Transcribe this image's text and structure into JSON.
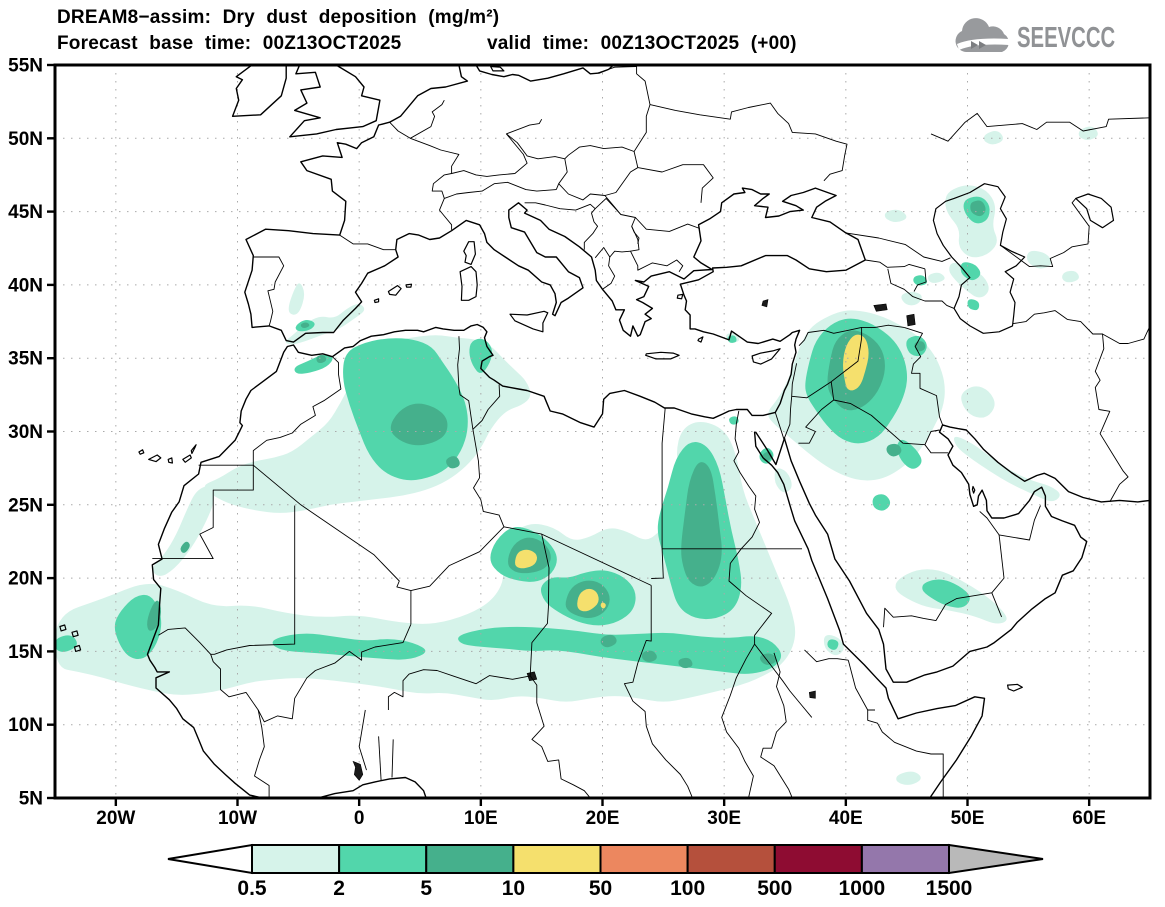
{
  "header": {
    "title": "DREAM8−assim: Dry dust deposition (mg/m²)",
    "forecast_base": "Forecast base time: 00Z13OCT2025",
    "valid_time": "valid time: 00Z13OCT2025 (+00)"
  },
  "logo": {
    "text": "SEEVCCC"
  },
  "map": {
    "lon_min": -25,
    "lon_max": 65,
    "lat_min": 5,
    "lat_max": 55,
    "x_tick_labels": [
      "20W",
      "10W",
      "0",
      "10E",
      "20E",
      "30E",
      "40E",
      "50E",
      "60E"
    ],
    "x_tick_lons": [
      -20,
      -10,
      0,
      10,
      20,
      30,
      40,
      50,
      60
    ],
    "y_tick_labels": [
      "55N",
      "50N",
      "45N",
      "40N",
      "35N",
      "30N",
      "25N",
      "20N",
      "15N",
      "10N",
      "5N"
    ],
    "y_tick_lats": [
      55,
      50,
      45,
      40,
      35,
      30,
      25,
      20,
      15,
      10,
      5
    ],
    "grid_lon_step": 10,
    "grid_lat_step": 5
  },
  "colorbar": {
    "levels": [
      "0.5",
      "2",
      "5",
      "10",
      "50",
      "100",
      "500",
      "1000",
      "1500"
    ],
    "segment_colors": [
      "#d6f3ea",
      "#52d6ab",
      "#45b08c",
      "#f5e06d",
      "#ec875f",
      "#b5503c",
      "#8e0c32",
      "#9477ab"
    ],
    "below_color": "#ffffff",
    "above_color": "#b9b9b9"
  },
  "chart_data": {
    "type": "filled-contour-map",
    "model": "DREAM8-assim",
    "variable": "Dry dust deposition",
    "units": "mg/m²",
    "contour_levels": [
      0.5,
      2,
      5,
      10,
      50,
      100,
      500,
      1000,
      1500
    ],
    "dust_regions": [
      {
        "area": "Senegal–Mauritania coast and eastern Atlantic",
        "lon": -17,
        "lat": 16.5,
        "level": "5–10"
      },
      {
        "area": "Central Algeria",
        "lon": 5,
        "lat": 30.5,
        "level": "5–10"
      },
      {
        "area": "NW Chad (Bodélé)",
        "lon": 13.7,
        "lat": 21.3,
        "level": "10–50"
      },
      {
        "area": "Chad–Sudan border",
        "lon": 18.8,
        "lat": 18.5,
        "level": "10–50"
      },
      {
        "area": "NW Sudan / SW Egypt",
        "lon": 28,
        "lat": 24,
        "level": "5–10"
      },
      {
        "area": "Eastern Syria / NW Iraq",
        "lon": 40.8,
        "lat": 34.5,
        "level": "10–50"
      },
      {
        "area": "Sahel band near 15N",
        "lon": 15,
        "lat": 15,
        "level": "2–5"
      },
      {
        "area": "North Caspian lowland",
        "lon": 50.8,
        "lat": 45.2,
        "level": "5–10"
      },
      {
        "area": "Southern Saudi Arabia (Rub al Khali)",
        "lon": 48.5,
        "lat": 18.8,
        "level": "2–5"
      },
      {
        "area": "Southern Spain",
        "lon": -4.5,
        "lat": 37.2,
        "level": "5–10"
      },
      {
        "area": "Tunisia coast",
        "lon": 10,
        "lat": 35,
        "level": "2–5"
      },
      {
        "area": "Gulf of Suez / Sinai",
        "lon": 33.5,
        "lat": 28.3,
        "level": "5–10"
      }
    ]
  }
}
